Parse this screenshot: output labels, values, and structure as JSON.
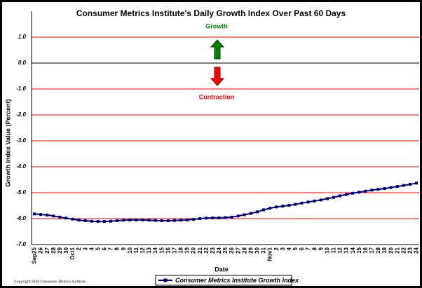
{
  "chart_data": {
    "type": "line",
    "title": "Consumer Metrics Institute's Daily Growth Index Over Past 60 Days",
    "annotations": [
      "Growth",
      "Contraction"
    ],
    "y_label": "Growth Index Value (Percent)",
    "x_label": "Date",
    "footer": "Copyright 2010 Consumer Metrics Institute",
    "categories": [
      "Sep25",
      "26",
      "27",
      "28",
      "29",
      "30",
      "Oct1",
      "2",
      "3",
      "4",
      "5",
      "6",
      "7",
      "8",
      "9",
      "10",
      "11",
      "12",
      "13",
      "14",
      "15",
      "16",
      "17",
      "18",
      "19",
      "20",
      "21",
      "22",
      "23",
      "24",
      "25",
      "26",
      "27",
      "28",
      "29",
      "30",
      "31",
      "Nov1",
      "2",
      "3",
      "4",
      "5",
      "6",
      "7",
      "8",
      "9",
      "10",
      "11",
      "12",
      "13",
      "14",
      "15",
      "16",
      "17",
      "18",
      "19",
      "20",
      "21",
      "22",
      "23",
      "24"
    ],
    "series": [
      {
        "name": "Consumer Metrics Institute Growth Index",
        "color": "#000080",
        "values": [
          -5.82,
          -5.84,
          -5.86,
          -5.9,
          -5.94,
          -5.98,
          -6.02,
          -6.06,
          -6.08,
          -6.1,
          -6.11,
          -6.11,
          -6.1,
          -6.08,
          -6.06,
          -6.05,
          -6.05,
          -6.05,
          -6.06,
          -6.07,
          -6.08,
          -6.08,
          -6.07,
          -6.06,
          -6.05,
          -6.03,
          -6.0,
          -5.98,
          -5.97,
          -5.97,
          -5.96,
          -5.94,
          -5.9,
          -5.85,
          -5.8,
          -5.74,
          -5.66,
          -5.6,
          -5.55,
          -5.52,
          -5.49,
          -5.45,
          -5.4,
          -5.36,
          -5.32,
          -5.28,
          -5.23,
          -5.18,
          -5.12,
          -5.07,
          -5.02,
          -4.98,
          -4.94,
          -4.9,
          -4.87,
          -4.84,
          -4.8,
          -4.76,
          -4.72,
          -4.68,
          -4.63
        ]
      }
    ],
    "ylim": [
      -7,
      2
    ],
    "yticks": [
      {
        "value": -7,
        "label": "-7.0"
      },
      {
        "value": -6,
        "label": "-6.0"
      },
      {
        "value": -5,
        "label": "-5.0"
      },
      {
        "value": -4,
        "label": "-4.0"
      },
      {
        "value": -3,
        "label": "-3.0"
      },
      {
        "value": -2,
        "label": "-2.0"
      },
      {
        "value": -1,
        "label": "-1.0"
      },
      {
        "value": 0,
        "label": "0.0"
      },
      {
        "value": 1,
        "label": "1.0"
      }
    ],
    "grid": true,
    "grid_color": "#ff0000",
    "legend": "bottom"
  }
}
